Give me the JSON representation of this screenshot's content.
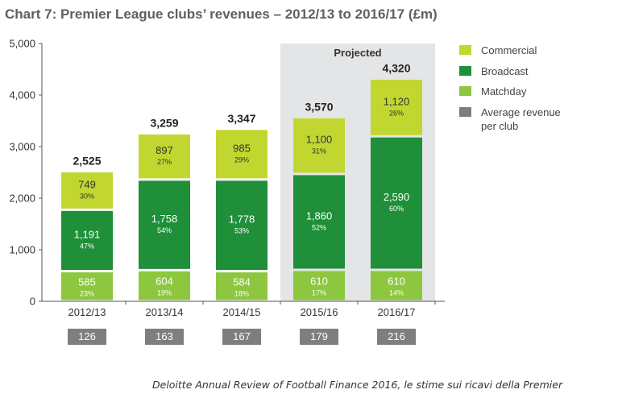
{
  "chart_data": {
    "type": "bar",
    "stacked": true,
    "title": "Chart 7: Premier League clubs’ revenues – 2012/13 to 2016/17 (£m)",
    "categories": [
      "2012/13",
      "2013/14",
      "2014/15",
      "2015/16",
      "2016/17"
    ],
    "series": [
      {
        "name": "Matchday",
        "values": [
          585,
          604,
          584,
          610,
          610
        ],
        "shares": [
          "23%",
          "19%",
          "18%",
          "17%",
          "14%"
        ],
        "color": "#8dc63f"
      },
      {
        "name": "Broadcast",
        "values": [
          1191,
          1758,
          1778,
          1860,
          2590
        ],
        "shares": [
          "47%",
          "54%",
          "53%",
          "52%",
          "60%"
        ],
        "color": "#1f8f3a"
      },
      {
        "name": "Commercial",
        "values": [
          749,
          897,
          985,
          1100,
          1120
        ],
        "shares": [
          "30%",
          "27%",
          "29%",
          "31%",
          "26%"
        ],
        "color": "#c1d730"
      }
    ],
    "value_labels": {
      "Matchday": [
        "585",
        "604",
        "584",
        "610",
        "610"
      ],
      "Broadcast": [
        "1,191",
        "1,758",
        "1,778",
        "1,860",
        "2,590"
      ],
      "Commercial": [
        "749",
        "897",
        "985",
        "1,100",
        "1,120"
      ]
    },
    "totals": [
      "2,525",
      "3,259",
      "3,347",
      "3,570",
      "4,320"
    ],
    "average_revenue_per_club": [
      "126",
      "163",
      "167",
      "179",
      "216"
    ],
    "average_series_name": "Average revenue per club",
    "average_color": "#7d7e80",
    "projected_label": "Projected",
    "projected_categories": [
      "2015/16",
      "2016/17"
    ],
    "projected_shade_color": "#e4e5e6",
    "ylim": [
      0,
      5000
    ],
    "yticks": [
      0,
      1000,
      2000,
      3000,
      4000,
      5000
    ],
    "ytick_labels": [
      "0",
      "1,000",
      "2,000",
      "3,000",
      "4,000",
      "5,000"
    ],
    "grid": false,
    "legend_position": "right",
    "legend_order": [
      "Commercial",
      "Broadcast",
      "Matchday",
      "Average revenue per club"
    ],
    "source_note": "Deloitte Annual Review of Football Finance 2016, le stime sui ricavi della Premier"
  }
}
